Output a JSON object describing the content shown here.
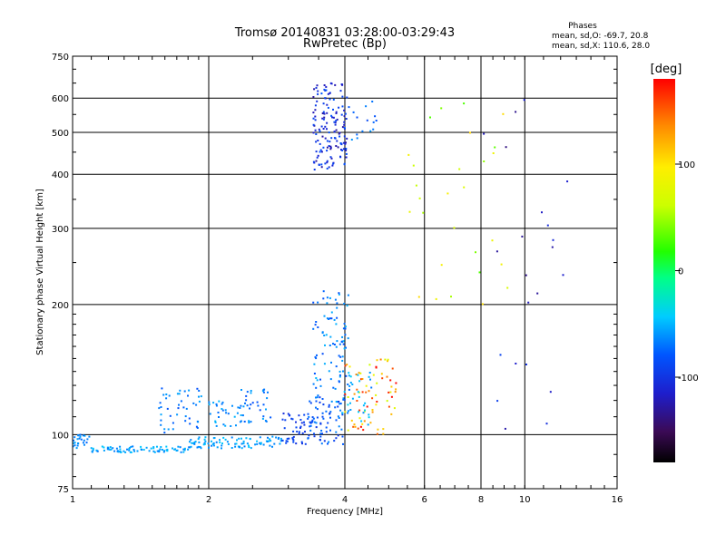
{
  "chart_data": {
    "type": "scatter",
    "title": "Tromsø 20140831 03:28:00-03:29:43",
    "subtitle": "RwPretec (Bp)",
    "xlabel": "Frequency [MHz]",
    "ylabel": "Stationary phase Virtual Height [km]",
    "x_scale": "log",
    "y_scale": "log",
    "xlim": [
      1,
      16
    ],
    "ylim": [
      75,
      750
    ],
    "x_ticks": [
      1,
      2,
      4,
      6,
      8,
      10,
      16
    ],
    "x_tick_labels": [
      "1",
      "2",
      "4",
      "6",
      "8",
      "10",
      "16"
    ],
    "y_ticks": [
      75,
      100,
      200,
      300,
      400,
      500,
      600,
      750
    ],
    "y_tick_labels": [
      "75",
      "100",
      "200",
      "300",
      "400",
      "500",
      "600",
      "750"
    ],
    "grid": true,
    "legend": {
      "heading": "Phases",
      "line1": "mean, sd,O: -69.7, 20.8",
      "line2": "mean, sd,X: 110.6, 28.0"
    },
    "colorbar": {
      "label": "[deg]",
      "range": [
        -180,
        180
      ],
      "ticks": [
        100,
        0,
        -100
      ],
      "tick_labels": [
        "100",
        "0",
        "-100"
      ]
    },
    "point_clusters": [
      {
        "x": [
          1.0,
          1.1
        ],
        "y": [
          93,
          100
        ],
        "n": 25,
        "phase": [
          -75,
          -55
        ]
      },
      {
        "x": [
          1.1,
          1.8
        ],
        "y": [
          91,
          94
        ],
        "n": 80,
        "phase": [
          -70,
          -45
        ]
      },
      {
        "x": [
          1.8,
          2.9
        ],
        "y": [
          93,
          99
        ],
        "n": 90,
        "phase": [
          -70,
          -45
        ]
      },
      {
        "x": [
          1.55,
          1.95
        ],
        "y": [
          100,
          130
        ],
        "n": 45,
        "phase": [
          -85,
          -55
        ]
      },
      {
        "x": [
          2.0,
          2.3
        ],
        "y": [
          104,
          120
        ],
        "n": 25,
        "phase": [
          -75,
          -50
        ]
      },
      {
        "x": [
          2.3,
          2.75
        ],
        "y": [
          104,
          130
        ],
        "n": 40,
        "phase": [
          -85,
          -55
        ]
      },
      {
        "x": [
          2.9,
          3.4
        ],
        "y": [
          95,
          112
        ],
        "n": 45,
        "phase": [
          -105,
          -80
        ]
      },
      {
        "x": [
          3.3,
          4.0
        ],
        "y": [
          95,
          125
        ],
        "n": 80,
        "phase": [
          -100,
          -65
        ]
      },
      {
        "x": [
          3.4,
          4.1
        ],
        "y": [
          125,
          215
        ],
        "n": 85,
        "phase": [
          -85,
          -50
        ]
      },
      {
        "x": [
          4.0,
          5.2
        ],
        "y": [
          100,
          150
        ],
        "n": 70,
        "phase": [
          60,
          180
        ]
      },
      {
        "x": [
          3.7,
          4.6
        ],
        "y": [
          105,
          140
        ],
        "n": 35,
        "phase": [
          -70,
          -40
        ]
      },
      {
        "x": [
          3.4,
          4.05
        ],
        "y": [
          410,
          650
        ],
        "n": 150,
        "phase": [
          -130,
          -80
        ]
      },
      {
        "x": [
          4.05,
          4.7
        ],
        "y": [
          470,
          590
        ],
        "n": 15,
        "phase": [
          -90,
          -60
        ]
      },
      {
        "x": [
          5.5,
          9.5
        ],
        "y": [
          200,
          600
        ],
        "n": 28,
        "phase": [
          30,
          110
        ]
      },
      {
        "x": [
          8.0,
          12.5
        ],
        "y": [
          100,
          650
        ],
        "n": 22,
        "phase": [
          -140,
          -90
        ]
      }
    ]
  }
}
